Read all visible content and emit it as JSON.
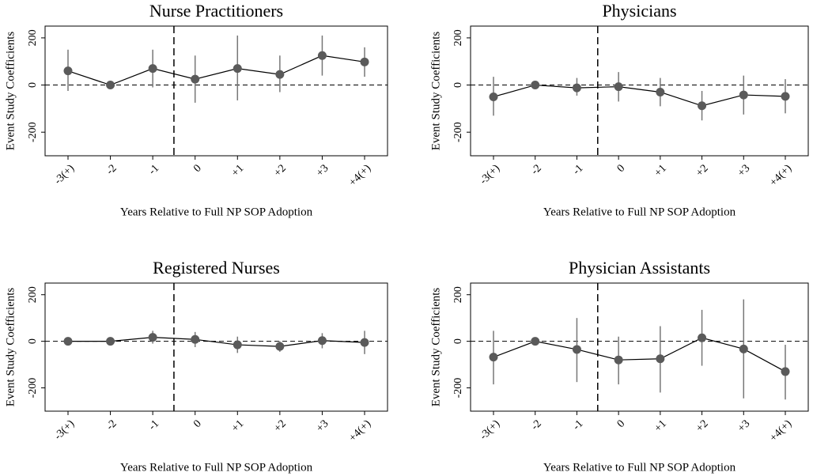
{
  "chart_data": [
    {
      "type": "line",
      "title": "Nurse Practitioners",
      "xlabel": "Years Relative to Full NP SOP Adoption",
      "ylabel": "Event Study Coefficients",
      "categories": [
        "-3(+)",
        "-2",
        "-1",
        "0",
        "+1",
        "+2",
        "+3",
        "+4(+)"
      ],
      "values": [
        60,
        0,
        70,
        25,
        70,
        45,
        125,
        98
      ],
      "lower": [
        -25,
        null,
        -10,
        -75,
        -65,
        -30,
        40,
        35
      ],
      "upper": [
        150,
        null,
        150,
        125,
        210,
        125,
        210,
        160
      ],
      "color": "#5a5a5a",
      "ylim": [
        -300,
        250
      ],
      "yticks": [
        -200,
        0,
        200
      ]
    },
    {
      "type": "line",
      "title": "Physicians",
      "xlabel": "Years Relative to Full NP SOP Adoption",
      "ylabel": "Event Study Coefficients",
      "categories": [
        "-3(+)",
        "-2",
        "-1",
        "0",
        "+1",
        "+2",
        "+3",
        "+4(+)"
      ],
      "values": [
        -50,
        0,
        -12,
        -7,
        -30,
        -88,
        -42,
        -48
      ],
      "lower": [
        -130,
        null,
        -45,
        -70,
        -90,
        -150,
        -125,
        -120
      ],
      "upper": [
        35,
        null,
        30,
        55,
        30,
        -25,
        40,
        25
      ],
      "color": "#5a5a5a",
      "ylim": [
        -300,
        250
      ],
      "yticks": [
        -200,
        0,
        200
      ]
    },
    {
      "type": "line",
      "title": "Registered Nurses",
      "xlabel": "Years Relative to Full NP SOP Adoption",
      "ylabel": "Event Study Coefficients",
      "categories": [
        "-3(+)",
        "-2",
        "-1",
        "0",
        "+1",
        "+2",
        "+3",
        "+4(+)"
      ],
      "values": [
        0,
        0,
        17,
        8,
        -15,
        -22,
        3,
        -5
      ],
      "lower": [
        -10,
        null,
        -10,
        -25,
        -50,
        -45,
        -30,
        -55
      ],
      "upper": [
        10,
        null,
        45,
        40,
        20,
        0,
        35,
        45
      ],
      "color": "#5a5a5a",
      "ylim": [
        -300,
        250
      ],
      "yticks": [
        -200,
        0,
        200
      ]
    },
    {
      "type": "line",
      "title": "Physician Assistants",
      "xlabel": "Years Relative to Full NP SOP Adoption",
      "ylabel": "Event Study Coefficients",
      "categories": [
        "-3(+)",
        "-2",
        "-1",
        "0",
        "+1",
        "+2",
        "+3",
        "+4(+)"
      ],
      "values": [
        -68,
        0,
        -35,
        -80,
        -75,
        15,
        -33,
        -130
      ],
      "lower": [
        -185,
        null,
        -175,
        -185,
        -220,
        -105,
        -245,
        -250
      ],
      "upper": [
        45,
        null,
        100,
        20,
        65,
        135,
        180,
        -15
      ],
      "color": "#5a5a5a",
      "ylim": [
        -300,
        250
      ],
      "yticks": [
        -200,
        0,
        200
      ]
    }
  ]
}
